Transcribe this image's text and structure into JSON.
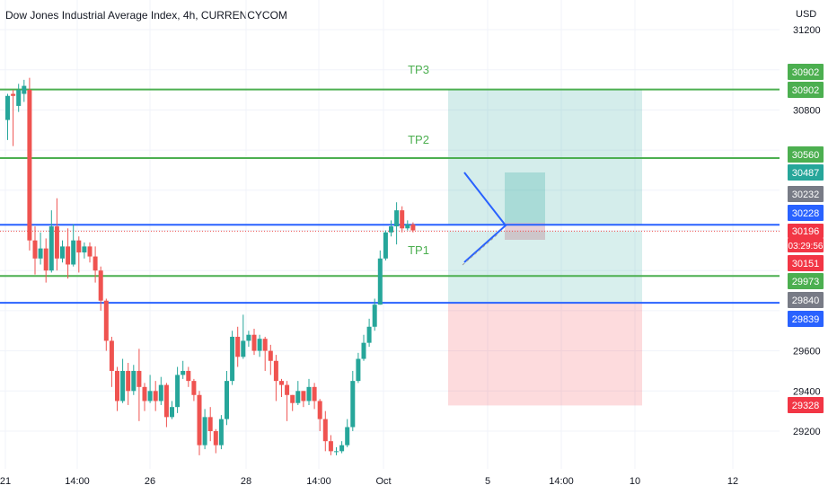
{
  "header": {
    "title": "Dow Jones Industrial Average Index, 4h, CURRENCYCOM"
  },
  "axis": {
    "currency": "USD"
  },
  "colors": {
    "bull": "#26a69a",
    "bear": "#ef5350",
    "green_line": "#4caf50",
    "blue_line": "#2962ff",
    "profit_zone": "#26a69a",
    "loss_zone": "#f23645",
    "grid": "#f0f3fa"
  },
  "chart_data": {
    "type": "candlestick",
    "title": "Dow Jones Industrial Average Index, 4h, CURRENCYCOM",
    "y_ticks": [
      31200,
      30800,
      29600,
      29400,
      29200
    ],
    "ylim": [
      29100,
      31300
    ],
    "x_ticks": [
      "21",
      "14:00",
      "26",
      "28",
      "14:00",
      "Oct",
      "5",
      "14:00",
      "10",
      "12"
    ],
    "grid": true,
    "horizontal_lines": [
      {
        "label": "TP3",
        "price": 30902,
        "color": "green"
      },
      {
        "label": "TP2",
        "price": 30560,
        "color": "green"
      },
      {
        "label": "",
        "price": 30228,
        "color": "blue"
      },
      {
        "label": "TP1",
        "price": 29973,
        "color": "green"
      },
      {
        "label": "",
        "price": 29839,
        "color": "blue"
      }
    ],
    "price_tags": [
      {
        "text": "30902",
        "color": "#4caf50"
      },
      {
        "text": "30902",
        "color": "#4caf50"
      },
      {
        "text": "30560",
        "color": "#4caf50"
      },
      {
        "text": "30487",
        "color": "#26a69a"
      },
      {
        "text": "30232",
        "color": "#787b86"
      },
      {
        "text": "30228",
        "color": "#2962ff"
      },
      {
        "text": "30196",
        "color": "#f23645"
      },
      {
        "text": "03:29:56",
        "color": "#f23645"
      },
      {
        "text": "30151",
        "color": "#f23645"
      },
      {
        "text": "29973",
        "color": "#4caf50"
      },
      {
        "text": "29840",
        "color": "#787b86"
      },
      {
        "text": "29839",
        "color": "#2962ff"
      },
      {
        "text": "29328",
        "color": "#f23645"
      }
    ],
    "long_position": {
      "entry": 30228,
      "stop": 29328,
      "target": 30902
    },
    "candles": [
      [
        30750,
        30870,
        30650,
        30880
      ],
      [
        30880,
        30870,
        30620,
        30900
      ],
      [
        30820,
        30900,
        30790,
        30930
      ],
      [
        30880,
        30920,
        30840,
        30950
      ],
      [
        30900,
        30150,
        30100,
        30960
      ],
      [
        30150,
        30060,
        29980,
        30220
      ],
      [
        30060,
        30110,
        30030,
        30190
      ],
      [
        30110,
        30000,
        29940,
        30160
      ],
      [
        30000,
        30220,
        29990,
        30300
      ],
      [
        30220,
        30060,
        30000,
        30360
      ],
      [
        30060,
        30120,
        30040,
        30150
      ],
      [
        30120,
        30030,
        29960,
        30210
      ],
      [
        30030,
        30150,
        30020,
        30230
      ],
      [
        30150,
        30090,
        29990,
        30170
      ],
      [
        30090,
        30120,
        30060,
        30140
      ],
      [
        30120,
        30070,
        30040,
        30140
      ],
      [
        30070,
        30000,
        29940,
        30120
      ],
      [
        30000,
        29850,
        29800,
        30020
      ],
      [
        29850,
        29650,
        29600,
        29860
      ],
      [
        29650,
        29500,
        29420,
        29670
      ],
      [
        29500,
        29350,
        29300,
        29520
      ],
      [
        29350,
        29500,
        29340,
        29560
      ],
      [
        29500,
        29400,
        29330,
        29540
      ],
      [
        29400,
        29500,
        29380,
        29530
      ],
      [
        29500,
        29420,
        29250,
        29610
      ],
      [
        29420,
        29350,
        29300,
        29440
      ],
      [
        29350,
        29400,
        29340,
        29480
      ],
      [
        29400,
        29350,
        29300,
        29450
      ],
      [
        29350,
        29430,
        29330,
        29470
      ],
      [
        29430,
        29270,
        29220,
        29440
      ],
      [
        29270,
        29320,
        29260,
        29350
      ],
      [
        29320,
        29480,
        29290,
        29520
      ],
      [
        29480,
        29500,
        29460,
        29550
      ],
      [
        29500,
        29450,
        29420,
        29520
      ],
      [
        29450,
        29380,
        29350,
        29460
      ],
      [
        29380,
        29130,
        29080,
        29400
      ],
      [
        29130,
        29270,
        29110,
        29310
      ],
      [
        29270,
        29200,
        29150,
        29320
      ],
      [
        29200,
        29130,
        29090,
        29210
      ],
      [
        29130,
        29260,
        29110,
        29280
      ],
      [
        29260,
        29450,
        29230,
        29500
      ],
      [
        29450,
        29670,
        29430,
        29700
      ],
      [
        29670,
        29570,
        29520,
        29720
      ],
      [
        29570,
        29650,
        29560,
        29780
      ],
      [
        29650,
        29680,
        29620,
        29700
      ],
      [
        29680,
        29600,
        29580,
        29710
      ],
      [
        29600,
        29660,
        29570,
        29680
      ],
      [
        29660,
        29600,
        29500,
        29670
      ],
      [
        29600,
        29550,
        29480,
        29630
      ],
      [
        29550,
        29450,
        29350,
        29580
      ],
      [
        29450,
        29430,
        29370,
        29460
      ],
      [
        29430,
        29380,
        29250,
        29450
      ],
      [
        29380,
        29340,
        29300,
        29380
      ],
      [
        29340,
        29400,
        29330,
        29450
      ],
      [
        29400,
        29350,
        29320,
        29400
      ],
      [
        29350,
        29420,
        29330,
        29460
      ],
      [
        29420,
        29350,
        29310,
        29440
      ],
      [
        29350,
        29260,
        29200,
        29360
      ],
      [
        29260,
        29150,
        29100,
        29300
      ],
      [
        29150,
        29100,
        29080,
        29180
      ],
      [
        29100,
        29100,
        29080,
        29120
      ],
      [
        29100,
        29130,
        29090,
        29150
      ],
      [
        29130,
        29220,
        29120,
        29260
      ],
      [
        29220,
        29450,
        29200,
        29500
      ],
      [
        29450,
        29560,
        29440,
        29590
      ],
      [
        29560,
        29640,
        29550,
        29680
      ],
      [
        29640,
        29720,
        29620,
        29760
      ],
      [
        29720,
        29830,
        29700,
        29860
      ],
      [
        29830,
        30060,
        29830,
        30100
      ],
      [
        30060,
        30190,
        30050,
        30200
      ],
      [
        30190,
        30220,
        30170,
        30250
      ],
      [
        30220,
        30300,
        30130,
        30340
      ],
      [
        30300,
        30210,
        30190,
        30320
      ],
      [
        30210,
        30230,
        30200,
        30250
      ],
      [
        30230,
        30200,
        30190,
        30240
      ]
    ]
  }
}
